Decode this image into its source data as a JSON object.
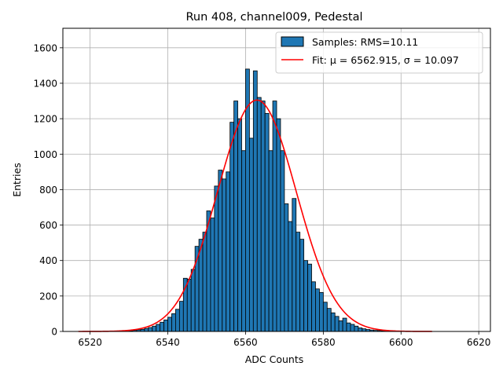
{
  "chart_data": {
    "type": "bar",
    "title": "Run 408, channel009, Pedestal",
    "xlabel": "ADC Counts",
    "ylabel": "Entries",
    "xlim": [
      6513,
      6623
    ],
    "ylim": [
      0,
      1710
    ],
    "xticks": [
      6520,
      6540,
      6560,
      6580,
      6600,
      6620
    ],
    "yticks": [
      0,
      200,
      400,
      600,
      800,
      1000,
      1200,
      1400,
      1600
    ],
    "grid": true,
    "legend_position": "top-right",
    "legend": [
      "Samples: RMS=10.11",
      "Fit: μ = 6562.915, σ = 10.097"
    ],
    "bin_width": 1,
    "bin_start": 6527,
    "series": [
      {
        "name": "Samples: RMS=10.11",
        "kind": "histogram",
        "color": "#1f77b4",
        "edgecolor": "#000000",
        "values": [
          1,
          2,
          3,
          4,
          6,
          9,
          12,
          17,
          22,
          30,
          40,
          52,
          65,
          80,
          100,
          125,
          170,
          300,
          295,
          350,
          480,
          520,
          560,
          680,
          640,
          820,
          910,
          860,
          900,
          1180,
          1300,
          1200,
          1020,
          1480,
          1090,
          1470,
          1320,
          1300,
          1230,
          1020,
          1300,
          1200,
          1020,
          720,
          620,
          750,
          560,
          520,
          400,
          380,
          280,
          240,
          220,
          165,
          130,
          105,
          85,
          60,
          75,
          48,
          40,
          30,
          20,
          15,
          11,
          8,
          6,
          5,
          4,
          3,
          2,
          1
        ]
      },
      {
        "name": "Fit: μ = 6562.915, σ = 10.097",
        "kind": "gaussian-fit",
        "color": "#ff0000",
        "mu": 6562.915,
        "sigma": 10.097,
        "amplitude": 1305,
        "x_range": [
          6517,
          6608
        ]
      }
    ]
  }
}
